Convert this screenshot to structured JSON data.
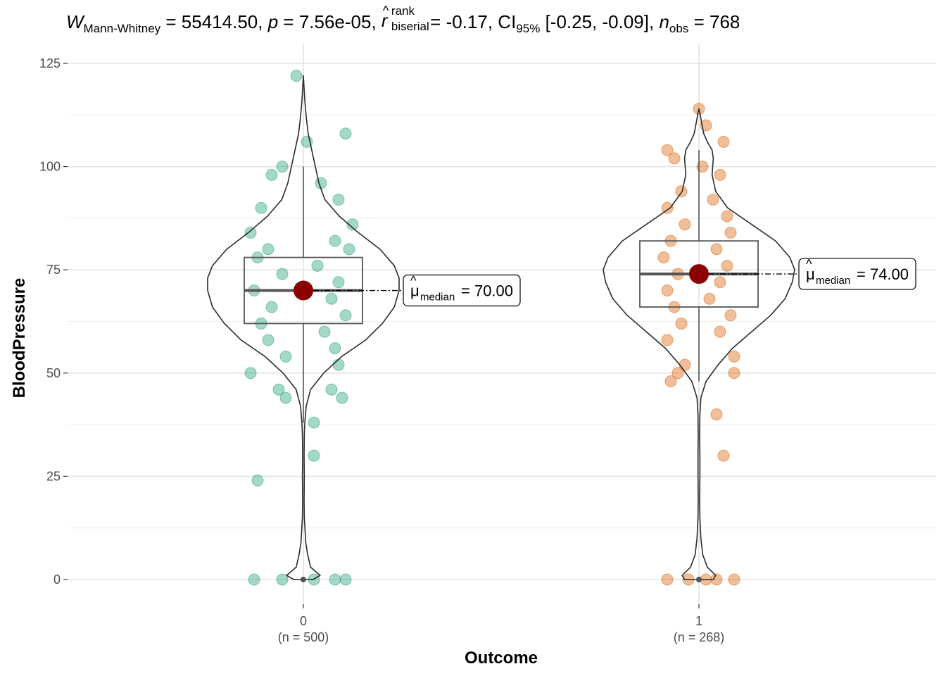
{
  "title": {
    "w_symbol": "W",
    "w_subscript": "Mann-Whitney",
    "w_value": "= 55414.50,",
    "p_symbol": "p",
    "p_value": "= 7.56e-05,",
    "r_symbol": "r",
    "r_superscript": "rank",
    "r_subscript": "biserial",
    "r_value": "= -0.17,",
    "ci_symbol": "CI",
    "ci_subscript": "95%",
    "ci_value": "[-0.25, -0.09],",
    "n_symbol": "n",
    "n_subscript": "obs",
    "n_value": "= 768"
  },
  "chart_data": {
    "type": "violin-box-scatter",
    "xlabel": "Outcome",
    "ylabel": "BloodPressure",
    "ylim": [
      -5,
      125
    ],
    "yticks": [
      0,
      25,
      50,
      75,
      100,
      125
    ],
    "grid": true,
    "categories": [
      "0",
      "1"
    ],
    "category_counts": [
      "(n = 500)",
      "(n = 268)"
    ],
    "groups": [
      {
        "name": "0",
        "n": 500,
        "color": "#1b9e77",
        "box": {
          "q1": 62,
          "median": 70,
          "q3": 78,
          "whisker_low": 38,
          "whisker_high": 100
        },
        "median_label_symbol": "μ",
        "median_label_subscript": "median",
        "median_label_value": "= 70.00",
        "violin": [
          [
            0,
            0.04
          ],
          [
            1,
            0.07
          ],
          [
            3,
            0.03
          ],
          [
            6,
            0.018
          ],
          [
            9,
            0.01
          ],
          [
            15,
            0.004
          ],
          [
            19,
            0.003
          ],
          [
            25,
            0.004
          ],
          [
            30,
            0.003
          ],
          [
            35,
            0.004
          ],
          [
            38,
            0.006
          ],
          [
            42,
            0.012
          ],
          [
            46,
            0.03
          ],
          [
            50,
            0.085
          ],
          [
            54,
            0.16
          ],
          [
            58,
            0.26
          ],
          [
            62,
            0.33
          ],
          [
            66,
            0.38
          ],
          [
            70,
            0.4
          ],
          [
            73,
            0.4
          ],
          [
            76,
            0.38
          ],
          [
            80,
            0.32
          ],
          [
            84,
            0.23
          ],
          [
            88,
            0.15
          ],
          [
            92,
            0.09
          ],
          [
            96,
            0.065
          ],
          [
            100,
            0.05
          ],
          [
            104,
            0.035
          ],
          [
            108,
            0.02
          ],
          [
            112,
            0.012
          ],
          [
            116,
            0.006
          ],
          [
            120,
            0.002
          ],
          [
            122,
            0
          ]
        ],
        "points": [
          {
            "offset": -0.02,
            "y": 122
          },
          {
            "offset": 0.01,
            "y": 106
          },
          {
            "offset": 0.12,
            "y": 108
          },
          {
            "offset": -0.06,
            "y": 100
          },
          {
            "offset": -0.09,
            "y": 98
          },
          {
            "offset": 0.05,
            "y": 96
          },
          {
            "offset": 0.1,
            "y": 92
          },
          {
            "offset": -0.12,
            "y": 90
          },
          {
            "offset": 0.14,
            "y": 86
          },
          {
            "offset": -0.15,
            "y": 84
          },
          {
            "offset": 0.09,
            "y": 82
          },
          {
            "offset": -0.1,
            "y": 80
          },
          {
            "offset": 0.13,
            "y": 80
          },
          {
            "offset": -0.13,
            "y": 78
          },
          {
            "offset": 0.04,
            "y": 76
          },
          {
            "offset": -0.06,
            "y": 74
          },
          {
            "offset": 0.1,
            "y": 72
          },
          {
            "offset": -0.14,
            "y": 70
          },
          {
            "offset": 0.08,
            "y": 68
          },
          {
            "offset": -0.09,
            "y": 66
          },
          {
            "offset": 0.12,
            "y": 64
          },
          {
            "offset": -0.12,
            "y": 62
          },
          {
            "offset": 0.06,
            "y": 60
          },
          {
            "offset": -0.1,
            "y": 58
          },
          {
            "offset": 0.09,
            "y": 56
          },
          {
            "offset": -0.05,
            "y": 54
          },
          {
            "offset": 0.1,
            "y": 52
          },
          {
            "offset": -0.15,
            "y": 50
          },
          {
            "offset": -0.07,
            "y": 46
          },
          {
            "offset": 0.08,
            "y": 46
          },
          {
            "offset": 0.11,
            "y": 44
          },
          {
            "offset": -0.05,
            "y": 44
          },
          {
            "offset": 0.03,
            "y": 38
          },
          {
            "offset": 0.03,
            "y": 30
          },
          {
            "offset": -0.13,
            "y": 24
          },
          {
            "offset": -0.14,
            "y": 0
          },
          {
            "offset": -0.06,
            "y": 0
          },
          {
            "offset": 0.03,
            "y": 0
          },
          {
            "offset": 0.09,
            "y": 0
          },
          {
            "offset": 0.12,
            "y": 0
          }
        ]
      },
      {
        "name": "1",
        "n": 268,
        "color": "#d95f02",
        "box": {
          "q1": 66,
          "median": 74,
          "q3": 82,
          "whisker_low": 48,
          "whisker_high": 104
        },
        "median_label_symbol": "μ",
        "median_label_subscript": "median",
        "median_label_value": "= 74.00",
        "violin": [
          [
            0,
            0.06
          ],
          [
            1,
            0.07
          ],
          [
            3,
            0.035
          ],
          [
            6,
            0.016
          ],
          [
            10,
            0.008
          ],
          [
            15,
            0.004
          ],
          [
            20,
            0.003
          ],
          [
            25,
            0.004
          ],
          [
            30,
            0.004
          ],
          [
            35,
            0.003
          ],
          [
            40,
            0.004
          ],
          [
            44,
            0.008
          ],
          [
            48,
            0.03
          ],
          [
            52,
            0.08
          ],
          [
            56,
            0.14
          ],
          [
            60,
            0.22
          ],
          [
            64,
            0.3
          ],
          [
            68,
            0.36
          ],
          [
            72,
            0.39
          ],
          [
            75,
            0.4
          ],
          [
            78,
            0.38
          ],
          [
            82,
            0.32
          ],
          [
            86,
            0.22
          ],
          [
            90,
            0.12
          ],
          [
            94,
            0.07
          ],
          [
            98,
            0.055
          ],
          [
            102,
            0.06
          ],
          [
            104,
            0.055
          ],
          [
            106,
            0.035
          ],
          [
            108,
            0.02
          ],
          [
            111,
            0.01
          ],
          [
            113,
            0.004
          ],
          [
            114,
            0
          ]
        ],
        "points": [
          {
            "offset": 0.0,
            "y": 114
          },
          {
            "offset": 0.02,
            "y": 110
          },
          {
            "offset": 0.07,
            "y": 106
          },
          {
            "offset": -0.09,
            "y": 104
          },
          {
            "offset": -0.07,
            "y": 102
          },
          {
            "offset": 0.01,
            "y": 100
          },
          {
            "offset": 0.06,
            "y": 98
          },
          {
            "offset": -0.05,
            "y": 94
          },
          {
            "offset": 0.04,
            "y": 92
          },
          {
            "offset": -0.09,
            "y": 90
          },
          {
            "offset": 0.08,
            "y": 88
          },
          {
            "offset": -0.04,
            "y": 86
          },
          {
            "offset": 0.09,
            "y": 84
          },
          {
            "offset": -0.08,
            "y": 82
          },
          {
            "offset": 0.05,
            "y": 80
          },
          {
            "offset": -0.1,
            "y": 78
          },
          {
            "offset": 0.08,
            "y": 76
          },
          {
            "offset": -0.06,
            "y": 74
          },
          {
            "offset": 0.06,
            "y": 72
          },
          {
            "offset": -0.09,
            "y": 70
          },
          {
            "offset": 0.03,
            "y": 68
          },
          {
            "offset": -0.07,
            "y": 66
          },
          {
            "offset": 0.09,
            "y": 64
          },
          {
            "offset": -0.05,
            "y": 62
          },
          {
            "offset": 0.06,
            "y": 60
          },
          {
            "offset": -0.09,
            "y": 58
          },
          {
            "offset": 0.1,
            "y": 54
          },
          {
            "offset": -0.04,
            "y": 52
          },
          {
            "offset": 0.1,
            "y": 50
          },
          {
            "offset": -0.06,
            "y": 50
          },
          {
            "offset": -0.08,
            "y": 48
          },
          {
            "offset": 0.05,
            "y": 40
          },
          {
            "offset": 0.07,
            "y": 30
          },
          {
            "offset": -0.09,
            "y": 0
          },
          {
            "offset": -0.03,
            "y": 0
          },
          {
            "offset": 0.02,
            "y": 0
          },
          {
            "offset": 0.05,
            "y": 0
          },
          {
            "offset": 0.1,
            "y": 0
          }
        ]
      }
    ]
  }
}
